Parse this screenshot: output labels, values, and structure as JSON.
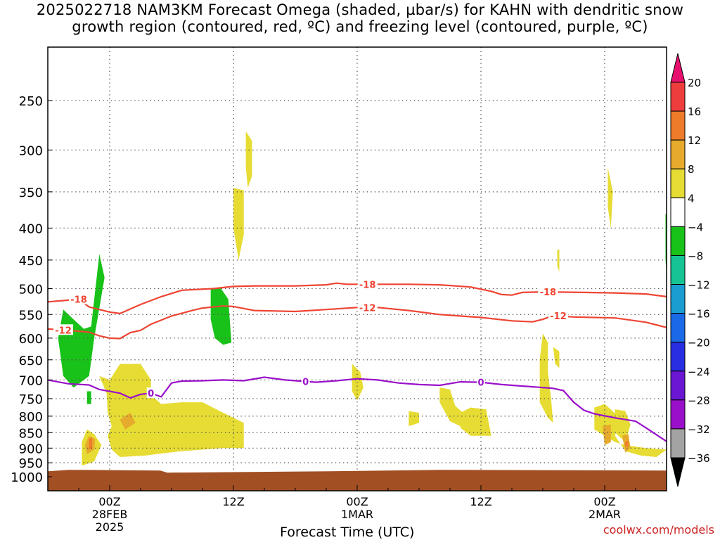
{
  "title_line1": "2025022718 NAM3KM Forecast Omega (shaded, µbar/s) for KAHN with dendritic snow",
  "title_line2": "growth region (contoured, red, ºC) and freezing level (contoured, purple, ºC)",
  "credit": "coolwx.com/models",
  "chart_data": {
    "type": "heatmap",
    "xlabel": "Forecast Time (UTC)",
    "ylabel": "",
    "x_units": "hours since 2025-02-27 18Z",
    "xlim": [
      0,
      60
    ],
    "ylim_hPa": [
      1040,
      195
    ],
    "y_scale": "log",
    "y_ticks": [
      250,
      300,
      350,
      400,
      450,
      500,
      550,
      600,
      650,
      700,
      750,
      800,
      850,
      900,
      950,
      1000
    ],
    "x_ticks": [
      {
        "x": 6,
        "label": "00Z",
        "sub1": "28FEB",
        "sub2": "2025"
      },
      {
        "x": 18,
        "label": "12Z",
        "sub1": "",
        "sub2": ""
      },
      {
        "x": 30,
        "label": "00Z",
        "sub1": "1MAR",
        "sub2": ""
      },
      {
        "x": 42,
        "label": "12Z",
        "sub1": "",
        "sub2": ""
      },
      {
        "x": 54,
        "label": "00Z",
        "sub1": "2MAR",
        "sub2": ""
      }
    ],
    "grid": true,
    "colorbar": {
      "levels": [
        20,
        16,
        12,
        8,
        4,
        -4,
        -8,
        -12,
        -16,
        -20,
        -24,
        -28,
        -32,
        -36
      ],
      "colors": [
        "#e8106e",
        "#ee3d3d",
        "#ee7b2a",
        "#e6aa2c",
        "#e6dc33",
        "#ffffff",
        "#19c219",
        "#16c394",
        "#1a9ed1",
        "#1a6ae8",
        "#2a2ee2",
        "#6a16d3",
        "#9a10ca",
        "#a3a3a3",
        "#000000"
      ]
    },
    "contours": [
      {
        "name": "-18",
        "color": "#ee4433",
        "label_x": [
          3,
          31,
          48.5
        ],
        "points": [
          [
            0,
            525
          ],
          [
            3,
            520
          ],
          [
            4,
            535
          ],
          [
            5,
            540
          ],
          [
            6,
            545
          ],
          [
            7,
            548
          ],
          [
            9,
            530
          ],
          [
            11,
            515
          ],
          [
            13,
            503
          ],
          [
            16,
            500
          ],
          [
            18,
            496
          ],
          [
            20,
            495
          ],
          [
            24,
            495
          ],
          [
            27,
            493
          ],
          [
            28,
            490
          ],
          [
            29,
            492
          ],
          [
            31,
            492
          ],
          [
            35,
            492
          ],
          [
            38,
            493
          ],
          [
            41,
            497
          ],
          [
            43,
            505
          ],
          [
            44,
            511
          ],
          [
            45,
            512
          ],
          [
            46,
            507
          ],
          [
            48,
            506
          ],
          [
            52,
            507
          ],
          [
            55,
            508
          ],
          [
            58,
            510
          ],
          [
            60,
            515
          ]
        ]
      },
      {
        "name": "-12",
        "color": "#ee4433",
        "label_x": [
          1.5,
          31,
          49.5
        ],
        "points": [
          [
            0,
            580
          ],
          [
            2,
            583
          ],
          [
            4,
            587
          ],
          [
            5,
            595
          ],
          [
            6,
            600
          ],
          [
            7,
            601
          ],
          [
            8,
            588
          ],
          [
            9,
            583
          ],
          [
            10,
            570
          ],
          [
            12,
            553
          ],
          [
            14,
            542
          ],
          [
            15,
            537
          ],
          [
            16,
            535
          ],
          [
            17,
            533
          ],
          [
            18,
            534
          ],
          [
            20,
            542
          ],
          [
            24,
            544
          ],
          [
            27,
            540
          ],
          [
            30,
            536
          ],
          [
            32,
            536
          ],
          [
            35,
            542
          ],
          [
            38,
            550
          ],
          [
            42,
            556
          ],
          [
            45,
            563
          ],
          [
            47,
            565
          ],
          [
            48,
            560
          ],
          [
            49,
            552
          ],
          [
            51,
            555
          ],
          [
            55,
            557
          ],
          [
            58,
            566
          ],
          [
            60,
            577
          ]
        ]
      },
      {
        "name": "0",
        "color": "#9a10ca",
        "label_x": [
          10,
          25,
          42
        ],
        "points": [
          [
            0,
            700
          ],
          [
            2,
            710
          ],
          [
            4,
            713
          ],
          [
            5,
            725
          ],
          [
            7,
            735
          ],
          [
            8,
            748
          ],
          [
            9,
            738
          ],
          [
            10,
            735
          ],
          [
            11,
            745
          ],
          [
            12,
            708
          ],
          [
            13,
            703
          ],
          [
            15,
            702
          ],
          [
            17,
            700
          ],
          [
            19,
            702
          ],
          [
            21,
            693
          ],
          [
            23,
            700
          ],
          [
            26,
            706
          ],
          [
            28,
            702
          ],
          [
            30,
            697
          ],
          [
            32,
            700
          ],
          [
            34,
            708
          ],
          [
            36,
            712
          ],
          [
            38,
            714
          ],
          [
            40,
            705
          ],
          [
            42,
            706
          ],
          [
            44,
            712
          ],
          [
            47,
            718
          ],
          [
            49,
            722
          ],
          [
            50,
            728
          ],
          [
            51,
            760
          ],
          [
            52,
            783
          ],
          [
            53,
            793
          ],
          [
            55,
            805
          ],
          [
            57,
            815
          ],
          [
            58,
            835
          ],
          [
            60,
            878
          ]
        ]
      }
    ],
    "shaded_regions": [
      {
        "color": "#19c219",
        "points": [
          [
            1.5,
            690
          ],
          [
            2.5,
            720
          ],
          [
            4,
            690
          ],
          [
            4.5,
            600
          ],
          [
            5.5,
            480
          ],
          [
            5,
            440
          ],
          [
            4.2,
            575
          ],
          [
            3.5,
            580
          ],
          [
            2.5,
            560
          ],
          [
            1.5,
            540
          ],
          [
            1.0,
            600
          ]
        ]
      },
      {
        "color": "#19c219",
        "points": [
          [
            3.8,
            765
          ],
          [
            4.2,
            765
          ],
          [
            4.2,
            730
          ],
          [
            3.8,
            730
          ]
        ]
      },
      {
        "color": "#19c219",
        "points": [
          [
            15.8,
            500
          ],
          [
            16.8,
            500
          ],
          [
            17.5,
            520
          ],
          [
            17.8,
            610
          ],
          [
            17.0,
            615
          ],
          [
            16.2,
            600
          ],
          [
            15.8,
            560
          ]
        ]
      },
      {
        "color": "#19c219",
        "points": [
          [
            59.9,
            380
          ],
          [
            60,
            380
          ],
          [
            60,
            470
          ],
          [
            59.9,
            450
          ]
        ]
      },
      {
        "color": "#e6dc33",
        "points": [
          [
            5,
            690
          ],
          [
            5.7,
            735
          ],
          [
            5.8,
            790
          ],
          [
            6.2,
            830
          ],
          [
            5.8,
            860
          ],
          [
            6.2,
            905
          ],
          [
            7,
            930
          ],
          [
            9.5,
            925
          ],
          [
            11,
            918
          ],
          [
            13,
            910
          ],
          [
            15,
            905
          ],
          [
            17,
            900
          ],
          [
            19,
            900
          ],
          [
            19,
            820
          ],
          [
            17,
            790
          ],
          [
            15,
            760
          ],
          [
            13,
            760
          ],
          [
            11,
            765
          ],
          [
            10,
            740
          ],
          [
            10,
            700
          ],
          [
            9,
            660
          ],
          [
            7,
            660
          ],
          [
            6,
            700
          ]
        ]
      },
      {
        "color": "#e6dc33",
        "points": [
          [
            3.3,
            960
          ],
          [
            4.5,
            945
          ],
          [
            5.2,
            890
          ],
          [
            4.5,
            855
          ],
          [
            3.8,
            840
          ],
          [
            3.3,
            880
          ]
        ]
      },
      {
        "color": "#e6dc33",
        "points": [
          [
            18,
            345
          ],
          [
            19,
            348
          ],
          [
            19,
            410
          ],
          [
            18.5,
            450
          ],
          [
            18.0,
            400
          ]
        ]
      },
      {
        "color": "#e6dc33",
        "points": [
          [
            19.2,
            280
          ],
          [
            19.8,
            290
          ],
          [
            19.8,
            330
          ],
          [
            19.4,
            345
          ],
          [
            19.2,
            320
          ]
        ]
      },
      {
        "color": "#e6dc33",
        "points": [
          [
            29.5,
            660
          ],
          [
            30.3,
            680
          ],
          [
            30.6,
            720
          ],
          [
            30,
            755
          ],
          [
            29.5,
            730
          ]
        ]
      },
      {
        "color": "#e6dc33",
        "points": [
          [
            35,
            830
          ],
          [
            36,
            820
          ],
          [
            36,
            790
          ],
          [
            35,
            785
          ]
        ]
      },
      {
        "color": "#e6dc33",
        "points": [
          [
            38,
            720
          ],
          [
            39,
            725
          ],
          [
            39.5,
            770
          ],
          [
            41,
            810
          ],
          [
            40,
            830
          ],
          [
            39,
            815
          ],
          [
            38,
            760
          ]
        ]
      },
      {
        "color": "#e6dc33",
        "points": [
          [
            40,
            790
          ],
          [
            41,
            775
          ],
          [
            42.5,
            780
          ],
          [
            43,
            860
          ],
          [
            41,
            860
          ],
          [
            40,
            835
          ]
        ]
      },
      {
        "color": "#e6dc33",
        "points": [
          [
            48,
            590
          ],
          [
            48.5,
            610
          ],
          [
            48.5,
            680
          ],
          [
            48.8,
            750
          ],
          [
            49,
            820
          ],
          [
            48.5,
            805
          ],
          [
            47.7,
            760
          ],
          [
            47.7,
            650
          ]
        ]
      },
      {
        "color": "#e6dc33",
        "points": [
          [
            49,
            620
          ],
          [
            49.6,
            630
          ],
          [
            49.6,
            670
          ],
          [
            49.2,
            660
          ]
        ]
      },
      {
        "color": "#e6dc33",
        "points": [
          [
            49.4,
            433
          ],
          [
            49.6,
            433
          ],
          [
            49.6,
            470
          ],
          [
            49.4,
            460
          ]
        ]
      },
      {
        "color": "#e6dc33",
        "points": [
          [
            54.3,
            320
          ],
          [
            54.8,
            350
          ],
          [
            54.6,
            400
          ],
          [
            54.3,
            370
          ]
        ]
      },
      {
        "color": "#e6dc33",
        "points": [
          [
            53,
            775
          ],
          [
            54,
            765
          ],
          [
            55.5,
            805
          ],
          [
            55,
            860
          ],
          [
            56,
            910
          ],
          [
            57.5,
            925
          ],
          [
            59,
            930
          ],
          [
            60,
            905
          ],
          [
            58,
            900
          ],
          [
            56,
            890
          ],
          [
            55,
            880
          ],
          [
            54,
            860
          ],
          [
            53,
            840
          ]
        ]
      },
      {
        "color": "#e6dc33",
        "points": [
          [
            55,
            780
          ],
          [
            56,
            785
          ],
          [
            56.5,
            825
          ],
          [
            56,
            880
          ],
          [
            55,
            850
          ]
        ]
      },
      {
        "color": "#e6aa2c",
        "points": [
          [
            3.8,
            920
          ],
          [
            4.5,
            905
          ],
          [
            4.6,
            870
          ],
          [
            4.0,
            860
          ],
          [
            3.6,
            890
          ]
        ]
      },
      {
        "color": "#e6aa2c",
        "points": [
          [
            7,
            810
          ],
          [
            8,
            790
          ],
          [
            8.5,
            820
          ],
          [
            7.5,
            840
          ]
        ]
      },
      {
        "color": "#e6aa2c",
        "points": [
          [
            53.8,
            830
          ],
          [
            54.6,
            825
          ],
          [
            54.6,
            880
          ],
          [
            54,
            890
          ]
        ]
      },
      {
        "color": "#e6aa2c",
        "points": [
          [
            55.7,
            860
          ],
          [
            56.3,
            855
          ],
          [
            56.5,
            900
          ],
          [
            56,
            915
          ]
        ]
      },
      {
        "color": "#ee7b2a",
        "points": [
          [
            4.0,
            905
          ],
          [
            4.3,
            900
          ],
          [
            4.3,
            865
          ],
          [
            4.0,
            870
          ]
        ]
      },
      {
        "color": "#ee7b2a",
        "points": [
          [
            56,
            880
          ],
          [
            56.3,
            875
          ],
          [
            56.3,
            895
          ],
          [
            56,
            895
          ]
        ]
      }
    ],
    "surface": {
      "color": "#a24f23",
      "pressure": 980
    }
  }
}
